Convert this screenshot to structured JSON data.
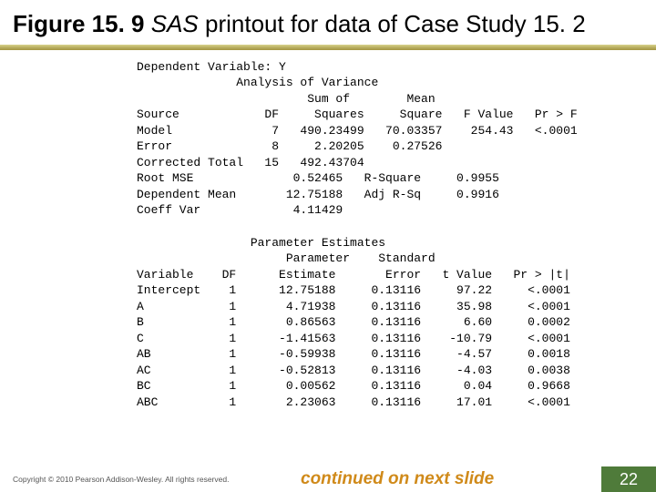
{
  "title": {
    "figure_label": "Figure 15. 9",
    "italic_part": "SAS",
    "rest": " printout for data of Case Study 15. 2"
  },
  "sas": {
    "dep_label": "Dependent Variable: Y",
    "aov_title": "Analysis of Variance",
    "aov_headers": {
      "h1": "Sum of",
      "h2": "Mean",
      "source": "Source",
      "df": "DF",
      "squares": "Squares",
      "square": "Square",
      "fval": "F Value",
      "prf": "Pr > F"
    },
    "aov_rows": [
      {
        "src": "Model",
        "df": "7",
        "ss": "490.23499",
        "ms": "70.03357",
        "f": "254.43",
        "p": "<.0001"
      },
      {
        "src": "Error",
        "df": "8",
        "ss": "2.20205",
        "ms": "0.27526",
        "f": "",
        "p": ""
      },
      {
        "src": "Corrected Total",
        "df": "15",
        "ss": "492.43704",
        "ms": "",
        "f": "",
        "p": ""
      }
    ],
    "fit": [
      {
        "l": "Root MSE",
        "v": "0.52465",
        "rl": "R-Square",
        "rv": "0.9955"
      },
      {
        "l": "Dependent Mean",
        "v": "12.75188",
        "rl": "Adj R-Sq",
        "rv": "0.9916"
      },
      {
        "l": "Coeff Var",
        "v": "4.11429",
        "rl": "",
        "rv": ""
      }
    ],
    "param_title": "Parameter Estimates",
    "param_headers": {
      "h1a": "Parameter",
      "h1b": "Standard",
      "var": "Variable",
      "df": "DF",
      "est": "Estimate",
      "err": "Error",
      "t": "t Value",
      "p": "Pr > |t|"
    },
    "param_rows": [
      {
        "var": "Intercept",
        "df": "1",
        "est": "12.75188",
        "err": "0.13116",
        "t": "97.22",
        "p": "<.0001"
      },
      {
        "var": "A",
        "df": "1",
        "est": "4.71938",
        "err": "0.13116",
        "t": "35.98",
        "p": "<.0001"
      },
      {
        "var": "B",
        "df": "1",
        "est": "0.86563",
        "err": "0.13116",
        "t": "6.60",
        "p": "0.0002"
      },
      {
        "var": "C",
        "df": "1",
        "est": "-1.41563",
        "err": "0.13116",
        "t": "-10.79",
        "p": "<.0001"
      },
      {
        "var": "AB",
        "df": "1",
        "est": "-0.59938",
        "err": "0.13116",
        "t": "-4.57",
        "p": "0.0018"
      },
      {
        "var": "AC",
        "df": "1",
        "est": "-0.52813",
        "err": "0.13116",
        "t": "-4.03",
        "p": "0.0038"
      },
      {
        "var": "BC",
        "df": "1",
        "est": "0.00562",
        "err": "0.13116",
        "t": "0.04",
        "p": "0.9668"
      },
      {
        "var": "ABC",
        "df": "1",
        "est": "2.23063",
        "err": "0.13116",
        "t": "17.01",
        "p": "<.0001"
      }
    ]
  },
  "footer": {
    "copyright": "Copyright © 2010 Pearson Addison-Wesley. All rights reserved.",
    "continued": "continued on next slide",
    "page": "22"
  },
  "colors": {
    "accent_bar": "#b4a95a",
    "continued_text": "#d08a1a",
    "page_box_bg": "#4f7b3a",
    "page_box_fg": "#ffffff"
  }
}
